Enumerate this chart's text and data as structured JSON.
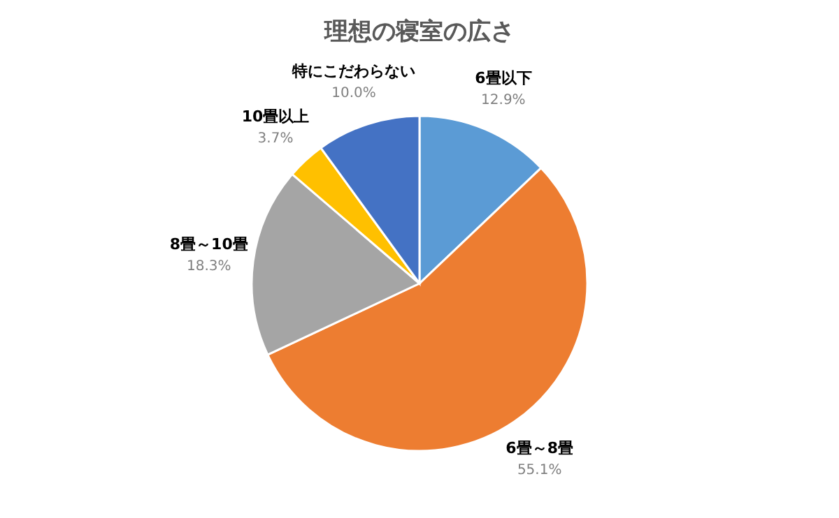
{
  "chart_data": {
    "type": "pie",
    "title": "理想の寝室の広さ",
    "categories": [
      "6畳以下",
      "6畳～8畳",
      "8畳～10畳",
      "10畳以上",
      "特にこだわらない"
    ],
    "values": [
      12.9,
      55.1,
      18.3,
      3.7,
      10.0
    ],
    "value_labels": [
      "12.9%",
      "55.1%",
      "18.3%",
      "3.7%",
      "10.0%"
    ],
    "colors": [
      "#5b9bd5",
      "#ed7d31",
      "#a5a5a5",
      "#ffc000",
      "#4472c4"
    ]
  }
}
